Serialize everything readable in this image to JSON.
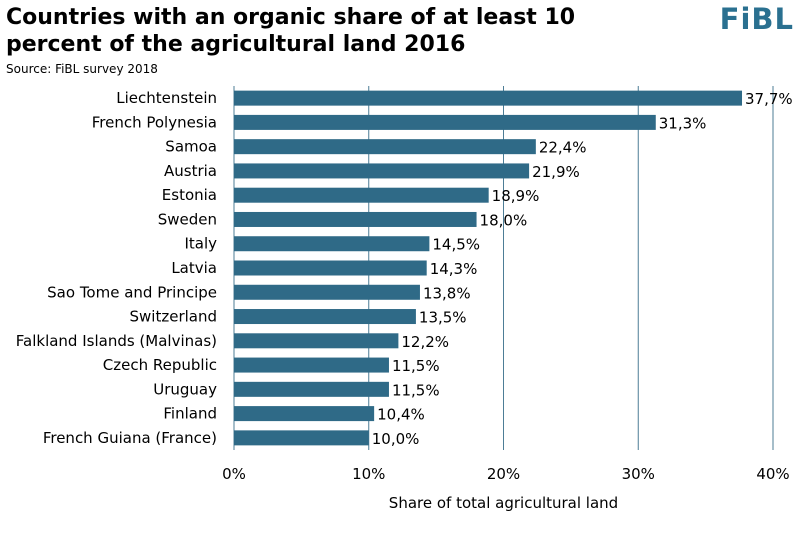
{
  "header": {
    "title": "Countries with an organic share of at least 10 percent of the agricultural land 2016",
    "source": "Source: FiBL survey 2018",
    "logo": "FiBL"
  },
  "colors": {
    "bar": "#2f6a87",
    "grid": "#4d7d96",
    "logo": "#2a7090"
  },
  "chart_data": {
    "type": "bar",
    "orientation": "horizontal",
    "title": "Countries with an organic share of at least 10 percent of the agricultural land 2016",
    "xlabel": "Share of total agricultural land",
    "ylabel": "",
    "xlim": [
      0,
      40
    ],
    "xticks": [
      0,
      10,
      20,
      30,
      40
    ],
    "xtick_labels": [
      "0%",
      "10%",
      "20%",
      "30%",
      "40%"
    ],
    "grid": "vertical",
    "categories": [
      "Liechtenstein",
      "French Polynesia",
      "Samoa",
      "Austria",
      "Estonia",
      "Sweden",
      "Italy",
      "Latvia",
      "Sao Tome and Principe",
      "Switzerland",
      "Falkland Islands (Malvinas)",
      "Czech Republic",
      "Uruguay",
      "Finland",
      "French Guiana (France)"
    ],
    "values": [
      37.7,
      31.3,
      22.4,
      21.9,
      18.9,
      18.0,
      14.5,
      14.3,
      13.8,
      13.5,
      12.2,
      11.5,
      11.5,
      10.4,
      10.0
    ],
    "value_labels": [
      "37,7%",
      "31,3%",
      "22,4%",
      "21,9%",
      "18,9%",
      "18,0%",
      "14,5%",
      "14,3%",
      "13,8%",
      "13,5%",
      "12,2%",
      "11,5%",
      "11,5%",
      "10,4%",
      "10,0%"
    ]
  }
}
